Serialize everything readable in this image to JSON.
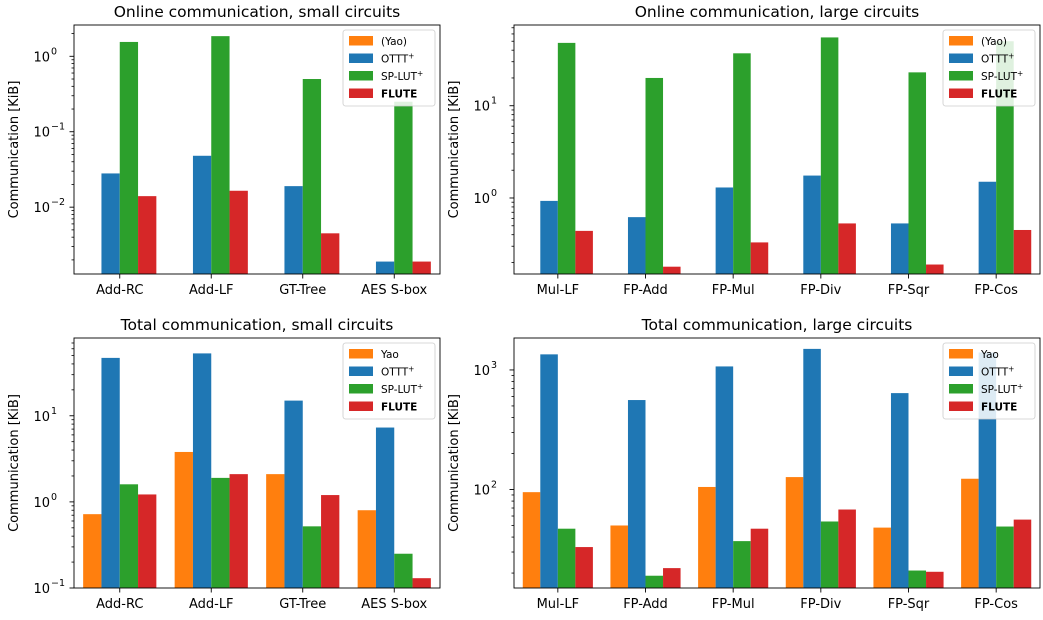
{
  "colors": {
    "yao": "#ff7f0e",
    "ottt": "#1f77b4",
    "splut": "#2ca02c",
    "flute": "#d62728"
  },
  "chart_data": [
    {
      "type": "bar",
      "title": "Online communication, small circuits",
      "ylabel": "Communication [KiB]",
      "yscale": "log",
      "ylim": [
        0.0013,
        2.6
      ],
      "yticks": [
        0.01,
        0.1,
        1
      ],
      "ytick_labels": [
        [
          "10",
          "−2"
        ],
        [
          "10",
          "−1"
        ],
        [
          "10",
          "0"
        ]
      ],
      "categories": [
        "Add-RC",
        "Add-LF",
        "GT-Tree",
        "AES S-box"
      ],
      "legend_position": "top-right",
      "series": [
        {
          "name": "(Yao)",
          "color": "#ff7f0e",
          "values": [
            null,
            null,
            null,
            null
          ]
        },
        {
          "name": "OTTT",
          "sup": "+",
          "color": "#1f77b4",
          "values": [
            0.028,
            0.048,
            0.019,
            0.0019
          ]
        },
        {
          "name": "SP-LUT",
          "sup": "+",
          "color": "#2ca02c",
          "values": [
            1.55,
            1.85,
            0.5,
            0.25
          ]
        },
        {
          "name": "FLUTE",
          "bold": true,
          "color": "#d62728",
          "values": [
            0.014,
            0.0165,
            0.0045,
            0.0019
          ]
        }
      ]
    },
    {
      "type": "bar",
      "title": "Online communication, large circuits",
      "ylabel": "Communication [KiB]",
      "yscale": "log",
      "ylim": [
        0.15,
        75
      ],
      "yticks": [
        1,
        10
      ],
      "ytick_labels": [
        [
          "10",
          "0"
        ],
        [
          "10",
          "1"
        ]
      ],
      "categories": [
        "Mul-LF",
        "FP-Add",
        "FP-Mul",
        "FP-Div",
        "FP-Sqr",
        "FP-Cos"
      ],
      "legend_position": "top-right",
      "series": [
        {
          "name": "(Yao)",
          "color": "#ff7f0e",
          "values": [
            null,
            null,
            null,
            null,
            null,
            null
          ]
        },
        {
          "name": "OTTT",
          "sup": "+",
          "color": "#1f77b4",
          "values": [
            0.93,
            0.62,
            1.3,
            1.75,
            0.53,
            1.5
          ]
        },
        {
          "name": "SP-LUT",
          "sup": "+",
          "color": "#2ca02c",
          "values": [
            48,
            20,
            37,
            55,
            23,
            50
          ]
        },
        {
          "name": "FLUTE",
          "bold": true,
          "color": "#d62728",
          "values": [
            0.44,
            0.18,
            0.33,
            0.53,
            0.19,
            0.45
          ]
        }
      ]
    },
    {
      "type": "bar",
      "title": "Total communication, small circuits",
      "ylabel": "Communication [KiB]",
      "yscale": "log",
      "ylim": [
        0.1,
        80
      ],
      "yticks": [
        0.1,
        1,
        10
      ],
      "ytick_labels": [
        [
          "10",
          "−1"
        ],
        [
          "10",
          "0"
        ],
        [
          "10",
          "1"
        ]
      ],
      "categories": [
        "Add-RC",
        "Add-LF",
        "GT-Tree",
        "AES S-box"
      ],
      "legend_position": "top-right",
      "series": [
        {
          "name": "Yao",
          "color": "#ff7f0e",
          "values": [
            0.72,
            3.8,
            2.1,
            0.8
          ]
        },
        {
          "name": "OTTT",
          "sup": "+",
          "color": "#1f77b4",
          "values": [
            47,
            53,
            15,
            7.3
          ]
        },
        {
          "name": "SP-LUT",
          "sup": "+",
          "color": "#2ca02c",
          "values": [
            1.6,
            1.9,
            0.52,
            0.25
          ]
        },
        {
          "name": "FLUTE",
          "bold": true,
          "color": "#d62728",
          "values": [
            1.22,
            2.1,
            1.2,
            0.13
          ]
        }
      ]
    },
    {
      "type": "bar",
      "title": "Total communication, large circuits",
      "ylabel": "Communication [KiB]",
      "yscale": "log",
      "ylim": [
        15,
        1850
      ],
      "yticks": [
        100,
        1000
      ],
      "ytick_labels": [
        [
          "10",
          "2"
        ],
        [
          "10",
          "3"
        ]
      ],
      "categories": [
        "Mul-LF",
        "FP-Add",
        "FP-Mul",
        "FP-Div",
        "FP-Sqr",
        "FP-Cos"
      ],
      "legend_position": "top-right",
      "series": [
        {
          "name": "Yao",
          "color": "#ff7f0e",
          "values": [
            95,
            50,
            105,
            127,
            48,
            123
          ]
        },
        {
          "name": "OTTT",
          "sup": "+",
          "color": "#1f77b4",
          "values": [
            1350,
            560,
            1070,
            1500,
            640,
            1400
          ]
        },
        {
          "name": "SP-LUT",
          "sup": "+",
          "color": "#2ca02c",
          "values": [
            47,
            19,
            37,
            54,
            21,
            49
          ]
        },
        {
          "name": "FLUTE",
          "bold": true,
          "color": "#d62728",
          "values": [
            33,
            22,
            47,
            68,
            20.5,
            56
          ]
        }
      ]
    }
  ]
}
